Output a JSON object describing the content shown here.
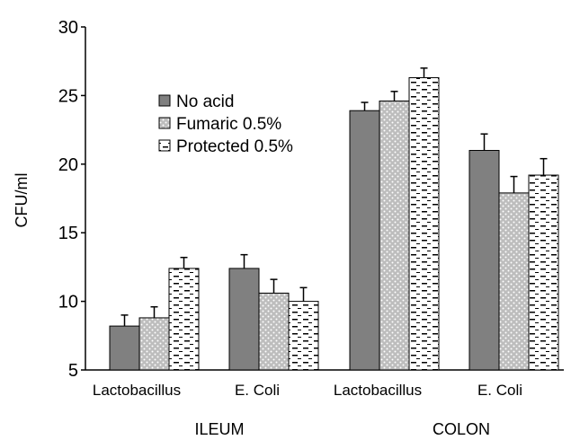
{
  "chart_data": {
    "type": "bar",
    "title": "",
    "ylabel": "CFU/ml",
    "xlabel": "",
    "ylim": [
      5,
      30
    ],
    "yticks": [
      5,
      10,
      15,
      20,
      25,
      30
    ],
    "grid": false,
    "legend_position": "top-left",
    "categories": [
      "Lactobacillus",
      "E. Coli",
      "Lactobacillus",
      "E. Coli"
    ],
    "groups": [
      {
        "label": "ILEUM",
        "categories": [
          0,
          1
        ]
      },
      {
        "label": "COLON",
        "categories": [
          2,
          3
        ]
      }
    ],
    "series": [
      {
        "name": "No acid",
        "pattern": "solid",
        "color": "#808080",
        "values": [
          8.2,
          12.4,
          23.9,
          21.0
        ],
        "errors": [
          0.8,
          1.0,
          0.6,
          1.2
        ]
      },
      {
        "name": "Fumaric  0.5%",
        "pattern": "dots",
        "color": "#c0c0c0",
        "values": [
          8.8,
          10.6,
          24.6,
          17.9
        ],
        "errors": [
          0.8,
          1.0,
          0.7,
          1.2
        ]
      },
      {
        "name": "Protected 0.5%",
        "pattern": "dashes",
        "color": "#ffffff",
        "values": [
          12.4,
          10.0,
          26.3,
          19.2
        ],
        "errors": [
          0.8,
          1.0,
          0.7,
          1.2
        ]
      }
    ]
  }
}
